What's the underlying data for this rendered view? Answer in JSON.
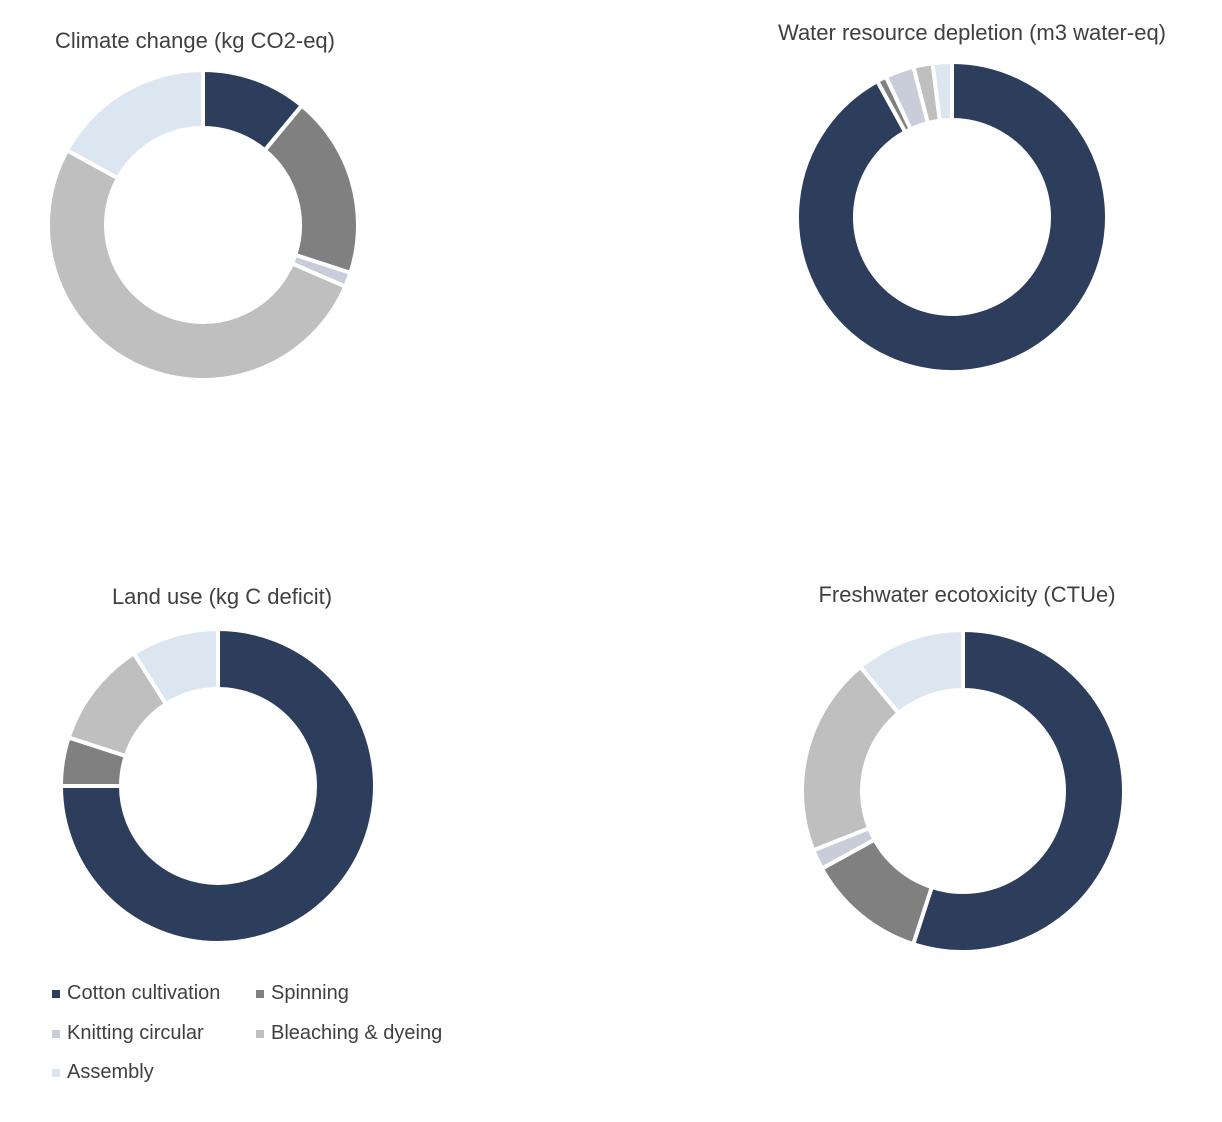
{
  "colors": {
    "cotton": "#2c3e5c",
    "spinning": "#808080",
    "knitting": "#c8cdd9",
    "bleaching": "#bfbfbf",
    "assembly": "#dce6f1"
  },
  "legend": [
    {
      "label": "Cotton cultivation",
      "color": "#2c3e5c"
    },
    {
      "label": "Spinning",
      "color": "#808080"
    },
    {
      "label": "Knitting circular",
      "color": "#c8cdd9"
    },
    {
      "label": "Bleaching & dyeing",
      "color": "#bfbfbf"
    },
    {
      "label": "Assembly",
      "color": "#dce6f1"
    }
  ],
  "chart_data": [
    {
      "type": "pie",
      "title": "Climate change (kg CO2-eq)",
      "categories": [
        "Cotton cultivation",
        "Spinning",
        "Knitting circular",
        "Bleaching & dyeing",
        "Assembly"
      ],
      "values": [
        11,
        19,
        1.5,
        51.5,
        17
      ]
    },
    {
      "type": "pie",
      "title": "Water resource depletion (m3 water-eq)",
      "categories": [
        "Cotton cultivation",
        "Spinning",
        "Knitting circular",
        "Bleaching & dyeing",
        "Assembly"
      ],
      "values": [
        92,
        1,
        3,
        2,
        2
      ]
    },
    {
      "type": "pie",
      "title": "Land use (kg C deficit)",
      "categories": [
        "Cotton cultivation",
        "Spinning",
        "Knitting circular",
        "Bleaching & dyeing",
        "Assembly"
      ],
      "values": [
        75,
        5,
        0,
        11,
        9
      ]
    },
    {
      "type": "pie",
      "title": "Freshwater ecotoxicity (CTUe)",
      "categories": [
        "Cotton cultivation",
        "Spinning",
        "Knitting circular",
        "Bleaching & dyeing",
        "Assembly"
      ],
      "values": [
        55,
        12,
        2,
        20,
        11
      ]
    }
  ]
}
